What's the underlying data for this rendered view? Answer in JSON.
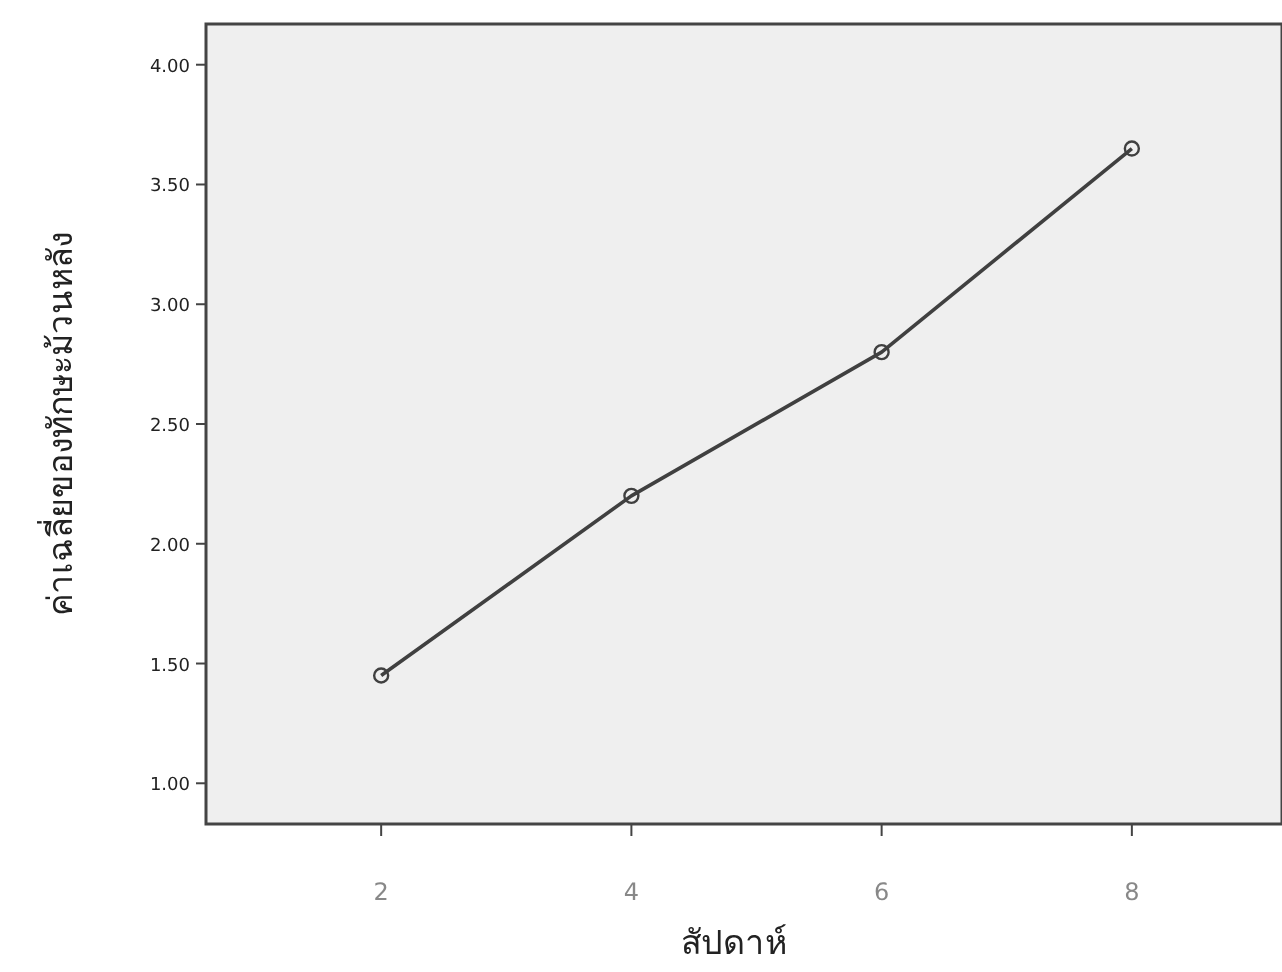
{
  "chart_data": {
    "type": "line",
    "xlabel": "สัปดาห์",
    "ylabel": "ค่าเฉลี่ยของทักษะม้วนหลัง",
    "x": [
      2,
      4,
      6,
      8
    ],
    "series": [
      {
        "color": "#404040",
        "values": [
          1.45,
          2.2,
          2.8,
          3.65
        ]
      }
    ],
    "marker": "circle",
    "line_style": "solid",
    "grid": false,
    "xlim": [
      0.6,
      9.2
    ],
    "ylim": [
      0.83,
      4.17
    ],
    "xticks": [
      2,
      4,
      6,
      8
    ],
    "yticks": [
      {
        "value": 1,
        "label": "1.00"
      },
      {
        "value": 1.5,
        "label": "1.50"
      },
      {
        "value": 2,
        "label": "2.00"
      },
      {
        "value": 2.5,
        "label": "2.50"
      },
      {
        "value": 3,
        "label": "3.00"
      },
      {
        "value": 3.5,
        "label": "3.50"
      },
      {
        "value": 4,
        "label": "4.00"
      }
    ]
  }
}
